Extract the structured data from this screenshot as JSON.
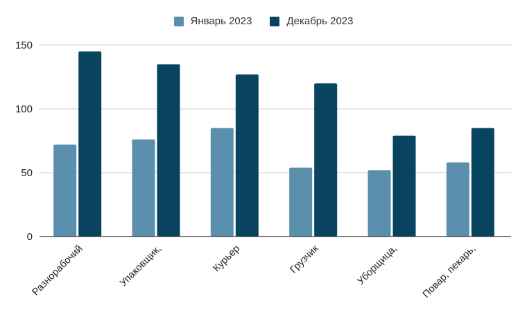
{
  "chart_data": {
    "type": "bar",
    "title": "",
    "xlabel": "",
    "ylabel": "",
    "categories": [
      "Разнорабочий",
      "Упаковщик,",
      "Курьер",
      "Грузчик",
      "Уборщица,",
      "Повар, пекарь,"
    ],
    "series": [
      {
        "name": "Январь 2023",
        "color": "#5a8fad",
        "values": [
          72,
          76,
          85,
          54,
          52,
          58
        ]
      },
      {
        "name": "Декабрь 2023",
        "color": "#08445f",
        "values": [
          145,
          135,
          127,
          120,
          79,
          85
        ]
      }
    ],
    "ylim": [
      0,
      150
    ],
    "yticks": [
      0,
      50,
      100,
      150
    ],
    "grid": true,
    "legend_position": "top-center"
  }
}
